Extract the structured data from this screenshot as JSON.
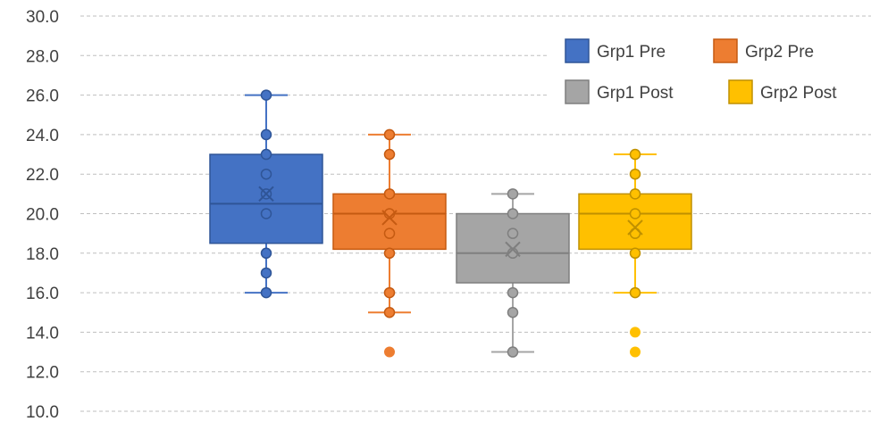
{
  "chart_data": {
    "type": "box",
    "title": "",
    "xlabel": "",
    "ylabel": "",
    "ylim": [
      10,
      30
    ],
    "ytick_step": 2,
    "yticks": [
      "30.0",
      "28.0",
      "26.0",
      "24.0",
      "22.0",
      "20.0",
      "18.0",
      "16.0",
      "14.0",
      "12.0",
      "10.0"
    ],
    "grid": true,
    "legend_position": "top-right",
    "series": [
      {
        "name": "Grp1 Pre",
        "color": "#4472C4",
        "dark": "#2F5597",
        "whisker_low": 16,
        "q1": 18.5,
        "median": 20.5,
        "q3": 23,
        "whisker_high": 26,
        "mean": 21,
        "points": [
          24,
          23,
          22,
          21,
          20,
          18,
          17,
          16,
          26
        ],
        "outliers": []
      },
      {
        "name": "Grp2 Pre",
        "color": "#ED7D31",
        "dark": "#C55A11",
        "whisker_low": 15,
        "q1": 18.2,
        "median": 20,
        "q3": 21,
        "whisker_high": 24,
        "mean": 19.8,
        "points": [
          24,
          23,
          21,
          20,
          19,
          18,
          16,
          15
        ],
        "outliers": [
          13
        ]
      },
      {
        "name": "Grp1 Post",
        "color": "#A5A5A5",
        "dark": "#7F7F7F",
        "whisker_low": 13,
        "q1": 16.5,
        "median": 18,
        "q3": 20,
        "whisker_high": 21,
        "mean": 18.2,
        "points": [
          21,
          20,
          19,
          18,
          16,
          15,
          13
        ],
        "outliers": []
      },
      {
        "name": "Grp2 Post",
        "color": "#FFC000",
        "dark": "#BF9000",
        "whisker_low": 16,
        "q1": 18.2,
        "median": 20,
        "q3": 21,
        "whisker_high": 23,
        "mean": 19.3,
        "points": [
          23,
          22,
          21,
          20,
          19,
          18,
          16
        ],
        "outliers": [
          14,
          13
        ]
      }
    ]
  }
}
